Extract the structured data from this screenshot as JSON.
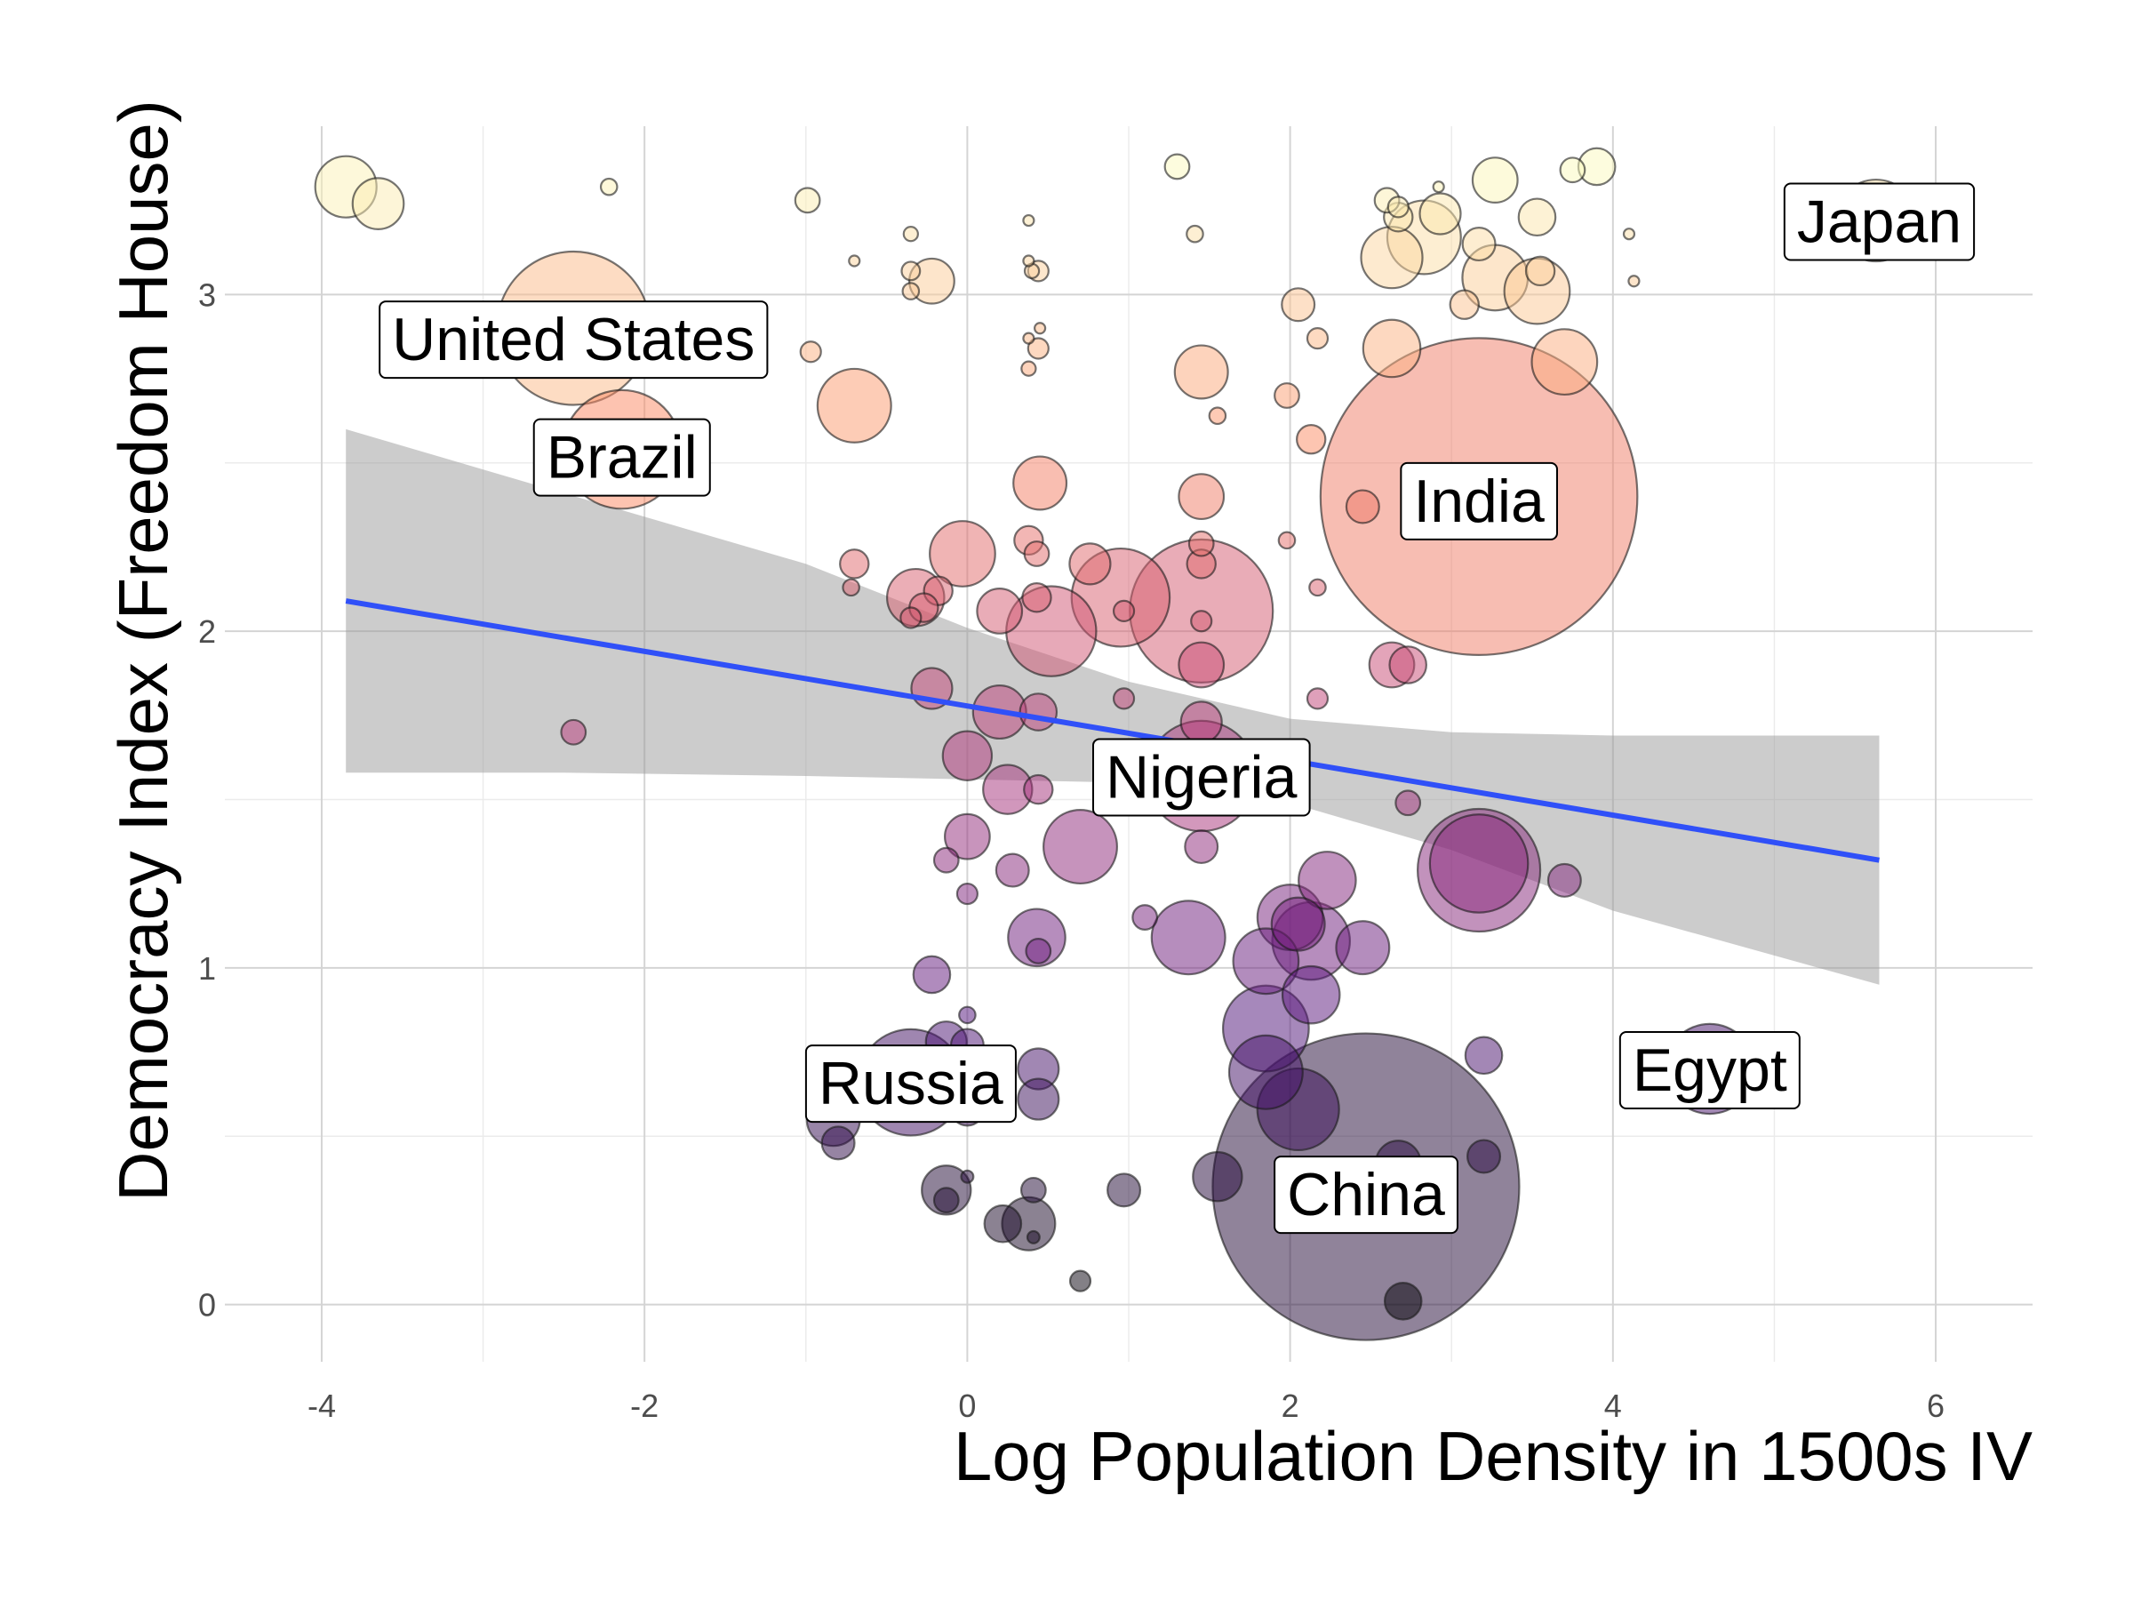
{
  "chart_data": {
    "type": "scatter",
    "title": "",
    "xlabel": "Log Population Density in 1500s IV",
    "ylabel": "Democracy Index (Freedom House)",
    "xlim": [
      -4.6,
      6.6
    ],
    "ylim": [
      -0.17,
      3.5
    ],
    "x_ticks": [
      -4,
      -2,
      0,
      2,
      4,
      6
    ],
    "y_ticks": [
      0,
      1,
      2,
      3
    ],
    "grid": true,
    "legend": "none",
    "color_scale": {
      "low": "#000004",
      "mid1": "#51127c",
      "mid2": "#b73779",
      "mid3": "#fc8961",
      "high": "#fcfdbf"
    },
    "fit": {
      "method": "linear",
      "color": "#3050f8",
      "x": [
        -3.85,
        5.65
      ],
      "y": [
        2.09,
        1.32
      ],
      "ci_x": [
        -3.85,
        -2.5,
        -1.0,
        0.0,
        1.0,
        2.0,
        3.0,
        4.0,
        5.65
      ],
      "ci_upper": [
        2.6,
        2.41,
        2.2,
        2.01,
        1.85,
        1.74,
        1.7,
        1.69,
        1.69
      ],
      "ci_lower": [
        1.58,
        1.58,
        1.57,
        1.56,
        1.55,
        1.49,
        1.35,
        1.17,
        0.95
      ]
    },
    "labels": [
      {
        "text": "United States",
        "x": -2.44,
        "y": 2.87
      },
      {
        "text": "Brazil",
        "x": -2.14,
        "y": 2.52
      },
      {
        "text": "India",
        "x": 3.17,
        "y": 2.39
      },
      {
        "text": "Nigeria",
        "x": 1.45,
        "y": 1.57
      },
      {
        "text": "Japan",
        "x": 5.65,
        "y": 3.22
      },
      {
        "text": "Russia",
        "x": -0.35,
        "y": 0.66
      },
      {
        "text": "Egypt",
        "x": 4.6,
        "y": 0.7
      },
      {
        "text": "China",
        "x": 2.47,
        "y": 0.33
      }
    ],
    "points": [
      {
        "x": -3.85,
        "y": 3.32,
        "s": 3
      },
      {
        "x": -3.65,
        "y": 3.27,
        "s": 2.5
      },
      {
        "x": -2.22,
        "y": 3.32,
        "s": 0.8
      },
      {
        "x": -0.99,
        "y": 3.28,
        "s": 1.2
      },
      {
        "x": -0.7,
        "y": 3.1,
        "s": 0.4
      },
      {
        "x": -0.35,
        "y": 3.18,
        "s": 0.7
      },
      {
        "x": -0.35,
        "y": 3.07,
        "s": 0.9
      },
      {
        "x": -0.35,
        "y": 3.01,
        "s": 0.8
      },
      {
        "x": -0.22,
        "y": 3.04,
        "s": 2.2
      },
      {
        "x": 0.38,
        "y": 3.22,
        "s": 0.4
      },
      {
        "x": 0.38,
        "y": 3.1,
        "s": 0.4
      },
      {
        "x": 0.4,
        "y": 3.07,
        "s": 0.7
      },
      {
        "x": 0.44,
        "y": 3.07,
        "s": 1
      },
      {
        "x": 0.45,
        "y": 2.9,
        "s": 0.4
      },
      {
        "x": 0.38,
        "y": 2.87,
        "s": 0.4
      },
      {
        "x": 0.44,
        "y": 2.84,
        "s": 1
      },
      {
        "x": 0.38,
        "y": 2.78,
        "s": 0.7
      },
      {
        "x": -0.97,
        "y": 2.83,
        "s": 1
      },
      {
        "x": 1.3,
        "y": 3.38,
        "s": 1.2
      },
      {
        "x": 1.41,
        "y": 3.18,
        "s": 0.8
      },
      {
        "x": 2.05,
        "y": 2.97,
        "s": 1.6
      },
      {
        "x": 2.6,
        "y": 3.28,
        "s": 1.2
      },
      {
        "x": 2.67,
        "y": 3.23,
        "s": 1.4
      },
      {
        "x": 2.67,
        "y": 3.26,
        "s": 1
      },
      {
        "x": 2.83,
        "y": 3.17,
        "s": 3.6
      },
      {
        "x": 2.63,
        "y": 3.11,
        "s": 3
      },
      {
        "x": 2.93,
        "y": 3.24,
        "s": 2
      },
      {
        "x": 2.92,
        "y": 3.32,
        "s": 0.5
      },
      {
        "x": 3.27,
        "y": 3.34,
        "s": 2.2
      },
      {
        "x": 3.17,
        "y": 3.15,
        "s": 1.6
      },
      {
        "x": 3.08,
        "y": 2.97,
        "s": 1.4
      },
      {
        "x": 3.27,
        "y": 3.05,
        "s": 3.2
      },
      {
        "x": 3.53,
        "y": 3.01,
        "s": 3.2
      },
      {
        "x": 3.55,
        "y": 3.07,
        "s": 1.4
      },
      {
        "x": 3.53,
        "y": 3.23,
        "s": 1.8
      },
      {
        "x": 3.75,
        "y": 3.37,
        "s": 1.2
      },
      {
        "x": 3.9,
        "y": 3.38,
        "s": 1.8
      },
      {
        "x": 4.1,
        "y": 3.18,
        "s": 0.4
      },
      {
        "x": 4.13,
        "y": 3.04,
        "s": 0.4
      },
      {
        "x": 5.63,
        "y": 3.22,
        "s": 4
      },
      {
        "x": -2.44,
        "y": 2.9,
        "s": 7.5
      },
      {
        "x": -0.7,
        "y": 2.67,
        "s": 3.6
      },
      {
        "x": -2.14,
        "y": 2.54,
        "s": 5.8
      },
      {
        "x": 2.63,
        "y": 2.84,
        "s": 2.8
      },
      {
        "x": 2.17,
        "y": 2.87,
        "s": 1
      },
      {
        "x": 1.45,
        "y": 2.77,
        "s": 2.6
      },
      {
        "x": 1.55,
        "y": 2.64,
        "s": 0.8
      },
      {
        "x": 1.98,
        "y": 2.7,
        "s": 1.2
      },
      {
        "x": 2.13,
        "y": 2.57,
        "s": 1.4
      },
      {
        "x": 3.7,
        "y": 2.8,
        "s": 3.2
      },
      {
        "x": 3.17,
        "y": 2.4,
        "s": 15.5
      },
      {
        "x": 2.45,
        "y": 2.37,
        "s": 1.6
      },
      {
        "x": 0.45,
        "y": 2.44,
        "s": 2.6
      },
      {
        "x": 1.45,
        "y": 2.4,
        "s": 2.2
      },
      {
        "x": 0.38,
        "y": 2.27,
        "s": 1.4
      },
      {
        "x": 0.43,
        "y": 2.23,
        "s": 1.2
      },
      {
        "x": -0.7,
        "y": 2.2,
        "s": 1.4
      },
      {
        "x": -0.72,
        "y": 2.13,
        "s": 0.8
      },
      {
        "x": -0.03,
        "y": 2.23,
        "s": 3.2
      },
      {
        "x": 0.76,
        "y": 2.2,
        "s": 2
      },
      {
        "x": -0.32,
        "y": 2.1,
        "s": 2.8
      },
      {
        "x": -0.18,
        "y": 2.12,
        "s": 1.4
      },
      {
        "x": -0.27,
        "y": 2.07,
        "s": 1.4
      },
      {
        "x": 0.95,
        "y": 2.1,
        "s": 4.8
      },
      {
        "x": 1.45,
        "y": 2.06,
        "s": 7
      },
      {
        "x": 1.45,
        "y": 2.2,
        "s": 1.4
      },
      {
        "x": 1.45,
        "y": 2.26,
        "s": 1.2
      },
      {
        "x": 1.45,
        "y": 2.03,
        "s": 1
      },
      {
        "x": 1.45,
        "y": 1.9,
        "s": 2.2
      },
      {
        "x": 0.2,
        "y": 2.06,
        "s": 2.2
      },
      {
        "x": 0.43,
        "y": 2.1,
        "s": 1.4
      },
      {
        "x": 0.52,
        "y": 2.0,
        "s": 4.4
      },
      {
        "x": 0.97,
        "y": 2.06,
        "s": 1
      },
      {
        "x": -0.35,
        "y": 2.04,
        "s": 1
      },
      {
        "x": 1.98,
        "y": 2.27,
        "s": 0.8
      },
      {
        "x": 2.17,
        "y": 2.13,
        "s": 0.8
      },
      {
        "x": 2.63,
        "y": 1.9,
        "s": 2.2
      },
      {
        "x": 2.73,
        "y": 1.9,
        "s": 1.8
      },
      {
        "x": 2.17,
        "y": 1.8,
        "s": 1
      },
      {
        "x": -2.44,
        "y": 1.7,
        "s": 1.2
      },
      {
        "x": -0.22,
        "y": 1.83,
        "s": 2
      },
      {
        "x": 0.2,
        "y": 1.76,
        "s": 2.6
      },
      {
        "x": 0.44,
        "y": 1.76,
        "s": 1.8
      },
      {
        "x": 0.97,
        "y": 1.8,
        "s": 1
      },
      {
        "x": 1.45,
        "y": 1.73,
        "s": 2
      },
      {
        "x": 1.45,
        "y": 1.57,
        "s": 5.4
      },
      {
        "x": 0.0,
        "y": 1.63,
        "s": 2.4
      },
      {
        "x": 0.25,
        "y": 1.53,
        "s": 2.4
      },
      {
        "x": 0.44,
        "y": 1.53,
        "s": 1.4
      },
      {
        "x": 1.45,
        "y": 1.5,
        "s": 1.2
      },
      {
        "x": 2.73,
        "y": 1.49,
        "s": 1.2
      },
      {
        "x": 0.0,
        "y": 1.39,
        "s": 2.2
      },
      {
        "x": 0.7,
        "y": 1.36,
        "s": 3.6
      },
      {
        "x": 1.45,
        "y": 1.36,
        "s": 1.6
      },
      {
        "x": -0.13,
        "y": 1.32,
        "s": 1.2
      },
      {
        "x": 0.28,
        "y": 1.29,
        "s": 1.6
      },
      {
        "x": 3.17,
        "y": 1.31,
        "s": 4.8
      },
      {
        "x": 3.17,
        "y": 1.29,
        "s": 6
      },
      {
        "x": 3.7,
        "y": 1.26,
        "s": 1.6
      },
      {
        "x": 2.23,
        "y": 1.26,
        "s": 2.8
      },
      {
        "x": 0.0,
        "y": 1.22,
        "s": 1
      },
      {
        "x": 1.1,
        "y": 1.15,
        "s": 1.2
      },
      {
        "x": 2.0,
        "y": 1.15,
        "s": 3.2
      },
      {
        "x": 2.05,
        "y": 1.13,
        "s": 2.6
      },
      {
        "x": 1.37,
        "y": 1.09,
        "s": 3.6
      },
      {
        "x": 0.43,
        "y": 1.09,
        "s": 2.8
      },
      {
        "x": 0.44,
        "y": 1.05,
        "s": 1.2
      },
      {
        "x": 2.13,
        "y": 1.08,
        "s": 3.8
      },
      {
        "x": 2.45,
        "y": 1.06,
        "s": 2.6
      },
      {
        "x": 1.85,
        "y": 1.02,
        "s": 3.2
      },
      {
        "x": -0.22,
        "y": 0.98,
        "s": 1.8
      },
      {
        "x": 2.13,
        "y": 0.92,
        "s": 2.8
      },
      {
        "x": 0.0,
        "y": 0.86,
        "s": 0.8
      },
      {
        "x": 1.85,
        "y": 0.82,
        "s": 4.2
      },
      {
        "x": -0.13,
        "y": 0.78,
        "s": 2
      },
      {
        "x": -0.35,
        "y": 0.66,
        "s": 5.2
      },
      {
        "x": 0.0,
        "y": 0.77,
        "s": 1.6
      },
      {
        "x": 0.44,
        "y": 0.7,
        "s": 2
      },
      {
        "x": 3.2,
        "y": 0.74,
        "s": 1.8
      },
      {
        "x": 4.6,
        "y": 0.7,
        "s": 4.4
      },
      {
        "x": 1.85,
        "y": 0.69,
        "s": 3.6
      },
      {
        "x": 2.05,
        "y": 0.58,
        "s": 4
      },
      {
        "x": 0.44,
        "y": 0.61,
        "s": 2
      },
      {
        "x": 0.0,
        "y": 0.58,
        "s": 1.6
      },
      {
        "x": -0.83,
        "y": 0.55,
        "s": 2.6
      },
      {
        "x": -0.8,
        "y": 0.48,
        "s": 1.6
      },
      {
        "x": 2.47,
        "y": 0.35,
        "s": 15
      },
      {
        "x": 2.67,
        "y": 0.42,
        "s": 2.2
      },
      {
        "x": 3.2,
        "y": 0.44,
        "s": 1.6
      },
      {
        "x": 1.55,
        "y": 0.38,
        "s": 2.4
      },
      {
        "x": 0.97,
        "y": 0.34,
        "s": 1.6
      },
      {
        "x": -0.13,
        "y": 0.34,
        "s": 2.4
      },
      {
        "x": -0.13,
        "y": 0.31,
        "s": 1.2
      },
      {
        "x": 0.0,
        "y": 0.38,
        "s": 0.6
      },
      {
        "x": 0.22,
        "y": 0.24,
        "s": 1.8
      },
      {
        "x": 0.38,
        "y": 0.24,
        "s": 2.6
      },
      {
        "x": 0.41,
        "y": 0.34,
        "s": 1.2
      },
      {
        "x": 0.41,
        "y": 0.2,
        "s": 0.6
      },
      {
        "x": 0.7,
        "y": 0.07,
        "s": 1
      },
      {
        "x": 2.7,
        "y": 0.01,
        "s": 1.8
      }
    ]
  }
}
